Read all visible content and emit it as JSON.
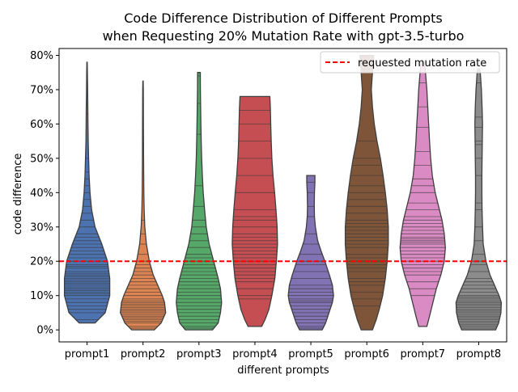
{
  "chart_data": {
    "type": "violin",
    "title_line1": "Code Difference Distribution of Different Prompts",
    "title_line2": "when Requesting 20% Mutation Rate with gpt-3.5-turbo",
    "xlabel": "different prompts",
    "ylabel": "code difference",
    "ylim": [
      -0.035,
      0.82
    ],
    "yticks": [
      0,
      0.1,
      0.2,
      0.3,
      0.4,
      0.5,
      0.6,
      0.7,
      0.8
    ],
    "ytick_labels": [
      "0%",
      "10%",
      "20%",
      "30%",
      "40%",
      "50%",
      "60%",
      "70%",
      "80%"
    ],
    "reference_line": {
      "label": "requested mutation rate",
      "value": 0.2,
      "color": "#ff0000",
      "style": "dashed"
    },
    "legend_position": "top-right",
    "categories": [
      "prompt1",
      "prompt2",
      "prompt3",
      "prompt4",
      "prompt5",
      "prompt6",
      "prompt7",
      "prompt8"
    ],
    "violins": [
      {
        "name": "prompt1",
        "color": "#4c72b0",
        "profile": [
          [
            0.02,
            0.35
          ],
          [
            0.05,
            0.8
          ],
          [
            0.1,
            1.0
          ],
          [
            0.15,
            1.0
          ],
          [
            0.2,
            0.9
          ],
          [
            0.25,
            0.65
          ],
          [
            0.3,
            0.35
          ],
          [
            0.35,
            0.2
          ],
          [
            0.4,
            0.13
          ],
          [
            0.45,
            0.09
          ],
          [
            0.5,
            0.07
          ],
          [
            0.55,
            0.05
          ],
          [
            0.6,
            0.04
          ],
          [
            0.65,
            0.035
          ],
          [
            0.7,
            0.025
          ],
          [
            0.75,
            0.015
          ],
          [
            0.78,
            0.008
          ]
        ],
        "samples": [
          0.03,
          0.05,
          0.06,
          0.07,
          0.08,
          0.09,
          0.1,
          0.105,
          0.11,
          0.115,
          0.12,
          0.125,
          0.13,
          0.135,
          0.14,
          0.145,
          0.15,
          0.155,
          0.16,
          0.165,
          0.17,
          0.18,
          0.185,
          0.19,
          0.2,
          0.21,
          0.22,
          0.23,
          0.24,
          0.25,
          0.26,
          0.27,
          0.28,
          0.3,
          0.32,
          0.34,
          0.36,
          0.38,
          0.4,
          0.42,
          0.44,
          0.46,
          0.5,
          0.63,
          0.66
        ]
      },
      {
        "name": "prompt2",
        "color": "#dd8452",
        "profile": [
          [
            0.0,
            0.5
          ],
          [
            0.02,
            0.8
          ],
          [
            0.05,
            1.0
          ],
          [
            0.08,
            0.95
          ],
          [
            0.1,
            0.85
          ],
          [
            0.13,
            0.65
          ],
          [
            0.16,
            0.45
          ],
          [
            0.2,
            0.28
          ],
          [
            0.25,
            0.15
          ],
          [
            0.3,
            0.08
          ],
          [
            0.35,
            0.05
          ],
          [
            0.4,
            0.035
          ],
          [
            0.5,
            0.025
          ],
          [
            0.6,
            0.02
          ],
          [
            0.7,
            0.015
          ],
          [
            0.725,
            0.008
          ]
        ],
        "samples": [
          0.005,
          0.01,
          0.02,
          0.025,
          0.03,
          0.035,
          0.04,
          0.045,
          0.05,
          0.055,
          0.06,
          0.065,
          0.07,
          0.075,
          0.08,
          0.085,
          0.09,
          0.1,
          0.11,
          0.12,
          0.13,
          0.14,
          0.15,
          0.16,
          0.17,
          0.18,
          0.19,
          0.2,
          0.22,
          0.25,
          0.28,
          0.32,
          0.6,
          0.67,
          0.7
        ]
      },
      {
        "name": "prompt3",
        "color": "#55a868",
        "profile": [
          [
            0.0,
            0.6
          ],
          [
            0.02,
            0.85
          ],
          [
            0.05,
            0.95
          ],
          [
            0.08,
            1.0
          ],
          [
            0.12,
            0.95
          ],
          [
            0.15,
            0.85
          ],
          [
            0.2,
            0.65
          ],
          [
            0.25,
            0.45
          ],
          [
            0.3,
            0.32
          ],
          [
            0.35,
            0.25
          ],
          [
            0.4,
            0.19
          ],
          [
            0.45,
            0.15
          ],
          [
            0.5,
            0.12
          ],
          [
            0.55,
            0.1
          ],
          [
            0.6,
            0.085
          ],
          [
            0.65,
            0.075
          ],
          [
            0.7,
            0.065
          ],
          [
            0.75,
            0.06
          ]
        ],
        "samples": [
          0.005,
          0.01,
          0.02,
          0.03,
          0.04,
          0.05,
          0.06,
          0.07,
          0.08,
          0.09,
          0.1,
          0.11,
          0.12,
          0.13,
          0.14,
          0.15,
          0.16,
          0.17,
          0.18,
          0.19,
          0.2,
          0.21,
          0.22,
          0.24,
          0.26,
          0.28,
          0.3,
          0.32,
          0.36,
          0.42,
          0.57,
          0.66,
          0.74
        ]
      },
      {
        "name": "prompt4",
        "color": "#c44e52",
        "profile": [
          [
            0.01,
            0.3
          ],
          [
            0.03,
            0.45
          ],
          [
            0.06,
            0.62
          ],
          [
            0.1,
            0.75
          ],
          [
            0.15,
            0.88
          ],
          [
            0.2,
            0.95
          ],
          [
            0.25,
            1.0
          ],
          [
            0.3,
            0.98
          ],
          [
            0.35,
            0.93
          ],
          [
            0.4,
            0.87
          ],
          [
            0.45,
            0.8
          ],
          [
            0.5,
            0.75
          ],
          [
            0.55,
            0.72
          ],
          [
            0.6,
            0.7
          ],
          [
            0.65,
            0.68
          ],
          [
            0.68,
            0.66
          ]
        ],
        "samples": [
          0.09,
          0.1,
          0.12,
          0.14,
          0.15,
          0.16,
          0.17,
          0.18,
          0.19,
          0.2,
          0.21,
          0.22,
          0.23,
          0.24,
          0.25,
          0.26,
          0.27,
          0.28,
          0.3,
          0.32,
          0.33,
          0.35,
          0.4,
          0.45,
          0.5,
          0.55,
          0.6,
          0.64,
          0.68
        ]
      },
      {
        "name": "prompt5",
        "color": "#8172b3",
        "profile": [
          [
            0.0,
            0.5
          ],
          [
            0.02,
            0.65
          ],
          [
            0.05,
            0.8
          ],
          [
            0.08,
            0.95
          ],
          [
            0.1,
            1.0
          ],
          [
            0.13,
            0.95
          ],
          [
            0.16,
            0.82
          ],
          [
            0.2,
            0.62
          ],
          [
            0.23,
            0.45
          ],
          [
            0.26,
            0.3
          ],
          [
            0.3,
            0.2
          ],
          [
            0.33,
            0.16
          ],
          [
            0.36,
            0.15
          ],
          [
            0.4,
            0.16
          ],
          [
            0.43,
            0.18
          ],
          [
            0.45,
            0.18
          ]
        ],
        "samples": [
          0.005,
          0.01,
          0.02,
          0.03,
          0.04,
          0.05,
          0.06,
          0.07,
          0.08,
          0.085,
          0.09,
          0.1,
          0.11,
          0.12,
          0.13,
          0.15,
          0.17,
          0.19,
          0.2,
          0.22,
          0.25,
          0.28,
          0.33,
          0.36,
          0.4,
          0.43
        ]
      },
      {
        "name": "prompt6",
        "color": "#7f5539",
        "profile": [
          [
            0.0,
            0.25
          ],
          [
            0.03,
            0.42
          ],
          [
            0.06,
            0.55
          ],
          [
            0.1,
            0.7
          ],
          [
            0.15,
            0.82
          ],
          [
            0.2,
            0.9
          ],
          [
            0.25,
            0.95
          ],
          [
            0.3,
            0.95
          ],
          [
            0.35,
            0.9
          ],
          [
            0.4,
            0.82
          ],
          [
            0.45,
            0.72
          ],
          [
            0.5,
            0.6
          ],
          [
            0.55,
            0.45
          ],
          [
            0.6,
            0.33
          ],
          [
            0.65,
            0.25
          ],
          [
            0.7,
            0.2
          ],
          [
            0.75,
            0.25
          ],
          [
            0.8,
            0.3
          ]
        ],
        "samples": [
          0.07,
          0.09,
          0.11,
          0.13,
          0.14,
          0.15,
          0.17,
          0.18,
          0.19,
          0.2,
          0.21,
          0.22,
          0.24,
          0.25,
          0.26,
          0.27,
          0.28,
          0.29,
          0.3,
          0.31,
          0.32,
          0.34,
          0.36,
          0.38,
          0.4,
          0.42,
          0.45,
          0.48,
          0.5,
          0.55,
          0.76,
          0.78
        ]
      },
      {
        "name": "prompt7",
        "color": "#da8bc3",
        "profile": [
          [
            0.01,
            0.18
          ],
          [
            0.04,
            0.3
          ],
          [
            0.08,
            0.45
          ],
          [
            0.12,
            0.6
          ],
          [
            0.16,
            0.8
          ],
          [
            0.2,
            0.95
          ],
          [
            0.24,
            1.0
          ],
          [
            0.28,
            0.95
          ],
          [
            0.32,
            0.85
          ],
          [
            0.36,
            0.7
          ],
          [
            0.4,
            0.55
          ],
          [
            0.45,
            0.42
          ],
          [
            0.5,
            0.35
          ],
          [
            0.55,
            0.3
          ],
          [
            0.6,
            0.26
          ],
          [
            0.65,
            0.22
          ],
          [
            0.7,
            0.18
          ],
          [
            0.75,
            0.12
          ],
          [
            0.78,
            0.07
          ]
        ],
        "samples": [
          0.1,
          0.12,
          0.14,
          0.16,
          0.17,
          0.18,
          0.19,
          0.2,
          0.21,
          0.22,
          0.23,
          0.24,
          0.25,
          0.255,
          0.26,
          0.265,
          0.27,
          0.28,
          0.29,
          0.3,
          0.31,
          0.32,
          0.33,
          0.35,
          0.37,
          0.4,
          0.42,
          0.44,
          0.48,
          0.52,
          0.59,
          0.65,
          0.72
        ]
      },
      {
        "name": "prompt8",
        "color": "#8c8c8c",
        "profile": [
          [
            0.0,
            0.75
          ],
          [
            0.02,
            0.88
          ],
          [
            0.05,
            0.98
          ],
          [
            0.08,
            1.0
          ],
          [
            0.1,
            0.9
          ],
          [
            0.13,
            0.7
          ],
          [
            0.16,
            0.5
          ],
          [
            0.2,
            0.32
          ],
          [
            0.25,
            0.2
          ],
          [
            0.3,
            0.17
          ],
          [
            0.35,
            0.15
          ],
          [
            0.4,
            0.14
          ],
          [
            0.45,
            0.14
          ],
          [
            0.5,
            0.15
          ],
          [
            0.55,
            0.16
          ],
          [
            0.6,
            0.17
          ],
          [
            0.65,
            0.15
          ],
          [
            0.7,
            0.12
          ],
          [
            0.75,
            0.07
          ],
          [
            0.76,
            0.04
          ]
        ],
        "samples": [
          0.005,
          0.01,
          0.015,
          0.02,
          0.025,
          0.03,
          0.035,
          0.04,
          0.045,
          0.05,
          0.055,
          0.06,
          0.065,
          0.07,
          0.075,
          0.08,
          0.085,
          0.09,
          0.095,
          0.1,
          0.11,
          0.12,
          0.13,
          0.14,
          0.15,
          0.17,
          0.19,
          0.2,
          0.22,
          0.26,
          0.3,
          0.35,
          0.37,
          0.45,
          0.5,
          0.54,
          0.55,
          0.59,
          0.62,
          0.72
        ]
      }
    ]
  }
}
